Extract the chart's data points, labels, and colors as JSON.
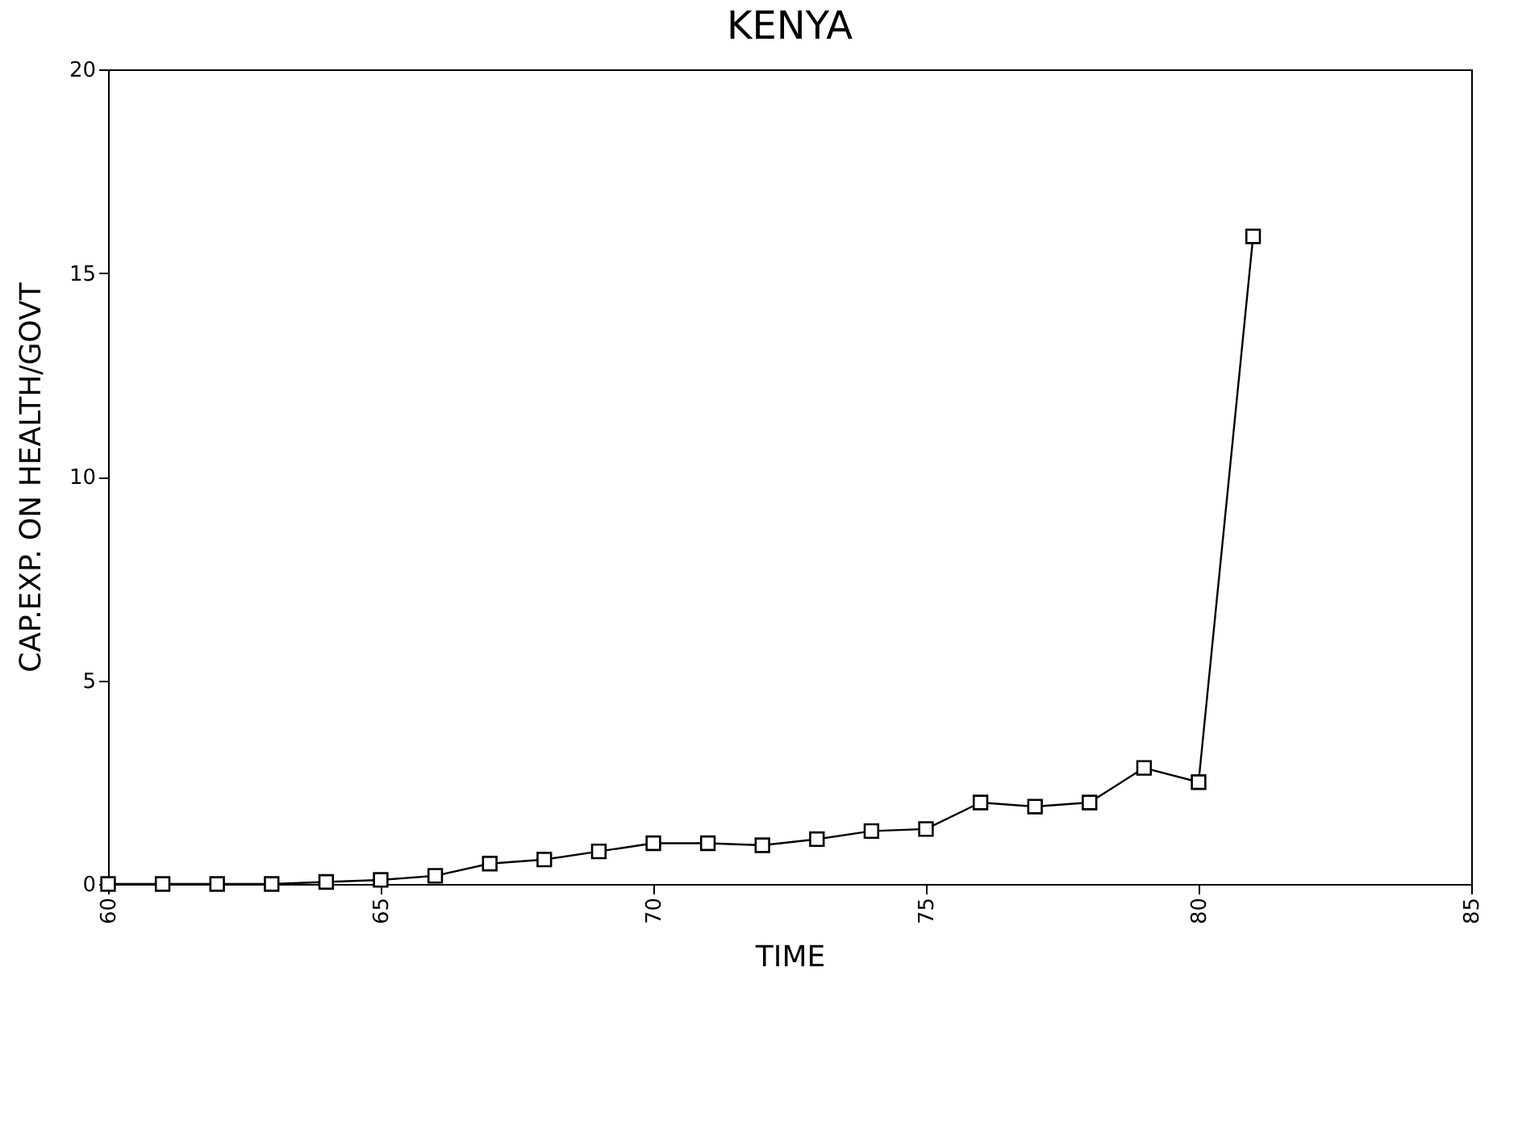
{
  "chart_data": {
    "type": "line",
    "title": "KENYA",
    "xlabel": "TIME",
    "ylabel": "CAP.EXP. ON HEALTH/GOVT",
    "x": [
      60,
      61,
      62,
      63,
      64,
      65,
      66,
      67,
      68,
      69,
      70,
      71,
      72,
      73,
      74,
      75,
      76,
      77,
      78,
      79,
      80,
      81
    ],
    "series": [
      {
        "color": "#000000",
        "values": [
          0.0,
          0.0,
          0.0,
          0.0,
          0.05,
          0.1,
          0.2,
          0.5,
          0.6,
          0.8,
          1.0,
          1.0,
          0.95,
          1.1,
          1.3,
          1.35,
          2.0,
          1.9,
          2.0,
          2.85,
          2.5,
          15.9
        ]
      }
    ],
    "xlim": [
      60,
      85
    ],
    "xticks": [
      60,
      65,
      70,
      75,
      80,
      85
    ],
    "ylim": [
      0,
      20
    ],
    "yticks": [
      0,
      5,
      10,
      15,
      20
    ],
    "marker": "square",
    "grid": false
  }
}
